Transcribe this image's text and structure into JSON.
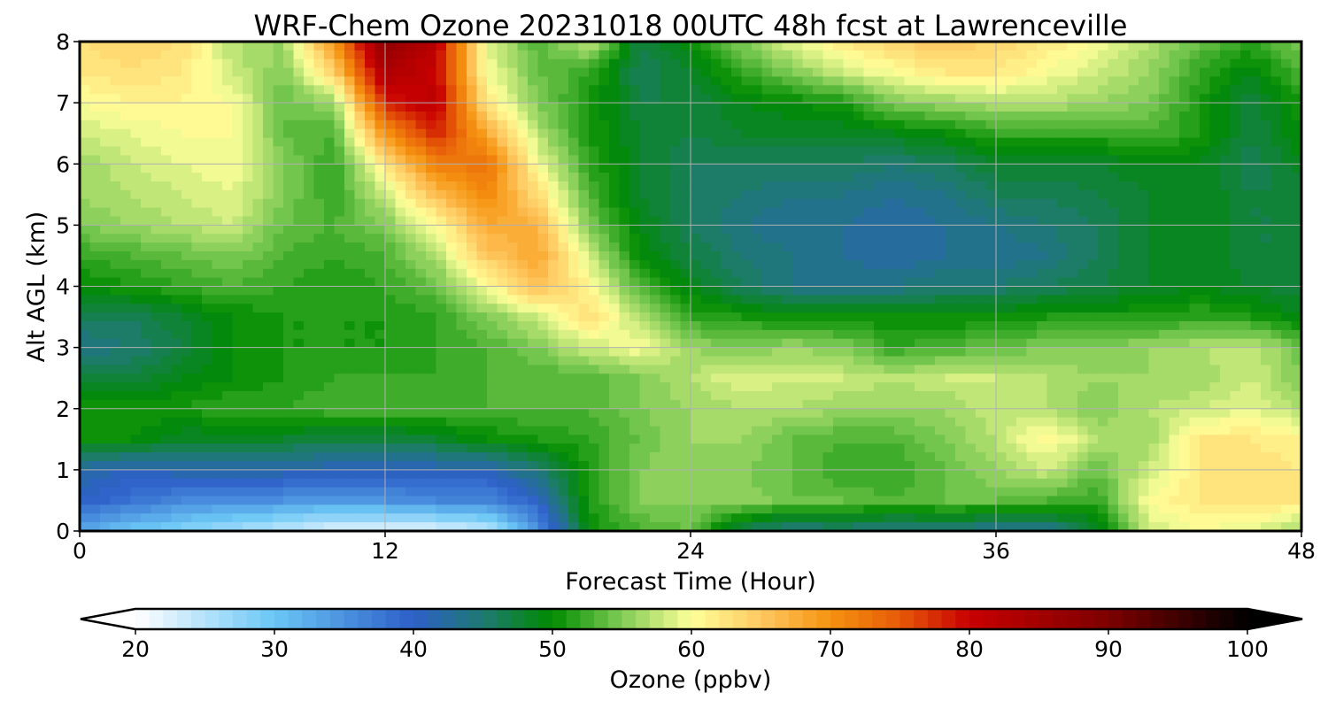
{
  "chart_data": {
    "type": "heatmap",
    "title": "WRF-Chem Ozone  20231018 00UTC 48h fcst at Lawrenceville",
    "xlabel": "Forecast Time (Hour)",
    "ylabel": "Alt AGL (km)",
    "x_ticks": [
      "0",
      "12",
      "24",
      "36",
      "48"
    ],
    "y_ticks": [
      "0",
      "1",
      "2",
      "3",
      "4",
      "5",
      "6",
      "7",
      "8"
    ],
    "xlim": [
      0,
      48
    ],
    "ylim": [
      0,
      8
    ],
    "grid": true,
    "x_hours": [
      0,
      2,
      4,
      6,
      8,
      10,
      12,
      14,
      16,
      18,
      20,
      22,
      24,
      26,
      28,
      30,
      32,
      34,
      36,
      38,
      40,
      42,
      44,
      46,
      48
    ],
    "y_km": [
      0,
      0.5,
      1,
      1.5,
      2,
      2.5,
      3,
      3.5,
      4,
      4.5,
      5,
      5.5,
      6,
      6.5,
      7,
      7.5,
      8
    ],
    "ozone_ppbv": [
      [
        33,
        30,
        28,
        26,
        24,
        22,
        21,
        22,
        24,
        35,
        50,
        53,
        54,
        46,
        44,
        45,
        44,
        44,
        43,
        43,
        48,
        58,
        60,
        59,
        56
      ],
      [
        40,
        38,
        36,
        35,
        35,
        34,
        35,
        36,
        36,
        40,
        51,
        55,
        55,
        56,
        54,
        54,
        53,
        54,
        54,
        53,
        52,
        60,
        62,
        63,
        62
      ],
      [
        42,
        41,
        42,
        42,
        42,
        41,
        41,
        41,
        41,
        45,
        51,
        55,
        56,
        55,
        54,
        52,
        52,
        54,
        56,
        58,
        54,
        58,
        62,
        63,
        62
      ],
      [
        50,
        50,
        48,
        48,
        48,
        47,
        47,
        48,
        50,
        51,
        52,
        54,
        56,
        56,
        54,
        53,
        53,
        55,
        57,
        61,
        57,
        56,
        62,
        62,
        61
      ],
      [
        51,
        51,
        51,
        52,
        52,
        53,
        53,
        53,
        53,
        53,
        53,
        55,
        56,
        57,
        57,
        56,
        56,
        56,
        58,
        57,
        55,
        57,
        58,
        59,
        57
      ],
      [
        47,
        47,
        49,
        50,
        51,
        52,
        52,
        52,
        53,
        53,
        53,
        55,
        57,
        59,
        58,
        58,
        57,
        58,
        58,
        57,
        56,
        56,
        56,
        58,
        55
      ],
      [
        44,
        45,
        47,
        50,
        51,
        51,
        51,
        52,
        53,
        55,
        58,
        60,
        56,
        55,
        56,
        55,
        52,
        53,
        54,
        55,
        55,
        56,
        57,
        58,
        54
      ],
      [
        46,
        46,
        48,
        50,
        51,
        51,
        51,
        52,
        55,
        58,
        63,
        57,
        52,
        51,
        50,
        50,
        50,
        50,
        50,
        51,
        51,
        51,
        52,
        51,
        49
      ],
      [
        50,
        51,
        52,
        53,
        52,
        51,
        52,
        54,
        60,
        66,
        61,
        53,
        49,
        46,
        44,
        44,
        44,
        45,
        45,
        46,
        47,
        48,
        49,
        48,
        47
      ],
      [
        52,
        53,
        54,
        55,
        53,
        52,
        53,
        57,
        65,
        68,
        58,
        50,
        47,
        45,
        44,
        43,
        42,
        43,
        43,
        44,
        46,
        48,
        49,
        47,
        47
      ],
      [
        55,
        56,
        57,
        58,
        54,
        53,
        55,
        60,
        68,
        67,
        55,
        49,
        46,
        44,
        43,
        43,
        42,
        43,
        44,
        45,
        46,
        48,
        49,
        47,
        47
      ],
      [
        56,
        57,
        58,
        59,
        55,
        52,
        58,
        66,
        71,
        63,
        53,
        48,
        46,
        45,
        44,
        44,
        43,
        44,
        46,
        46,
        47,
        48,
        49,
        47,
        47
      ],
      [
        56,
        58,
        59,
        60,
        55,
        52,
        62,
        72,
        73,
        60,
        52,
        48,
        46,
        46,
        46,
        46,
        45,
        46,
        48,
        48,
        48,
        49,
        49,
        46,
        49
      ],
      [
        58,
        59,
        60,
        60,
        54,
        53,
        70,
        78,
        68,
        57,
        51,
        48,
        47,
        48,
        48,
        48,
        49,
        50,
        52,
        52,
        52,
        53,
        51,
        47,
        50
      ],
      [
        60,
        61,
        61,
        60,
        54,
        56,
        78,
        82,
        62,
        55,
        51,
        47,
        47,
        49,
        50,
        51,
        55,
        56,
        57,
        57,
        56,
        55,
        51,
        47,
        51
      ],
      [
        62,
        63,
        62,
        58,
        55,
        64,
        84,
        80,
        60,
        54,
        52,
        46,
        48,
        52,
        55,
        58,
        60,
        62,
        62,
        60,
        58,
        56,
        52,
        49,
        53
      ],
      [
        63,
        64,
        63,
        57,
        56,
        70,
        88,
        82,
        59,
        53,
        58,
        47,
        50,
        55,
        59,
        62,
        64,
        65,
        64,
        62,
        60,
        57,
        54,
        52,
        55
      ]
    ],
    "colorbar": {
      "label": "Ozone  (ppbv)",
      "ticks": [
        "20",
        "30",
        "40",
        "50",
        "60",
        "70",
        "80",
        "90",
        "100"
      ],
      "min": 20,
      "max": 100,
      "step": 1,
      "extend": "both",
      "orientation": "horizontal",
      "placement": "bottom"
    },
    "colormap_stops": [
      {
        "value": 20,
        "color": "#ffffff"
      },
      {
        "value": 30,
        "color": "#6ac6f5"
      },
      {
        "value": 40,
        "color": "#2d5fc9"
      },
      {
        "value": 45,
        "color": "#1f7a72"
      },
      {
        "value": 50,
        "color": "#008b00"
      },
      {
        "value": 55,
        "color": "#80cc55"
      },
      {
        "value": 60,
        "color": "#ffff9a"
      },
      {
        "value": 65,
        "color": "#ffc860"
      },
      {
        "value": 70,
        "color": "#f59310"
      },
      {
        "value": 75,
        "color": "#e65a08"
      },
      {
        "value": 80,
        "color": "#c80000"
      },
      {
        "value": 90,
        "color": "#7d0000"
      },
      {
        "value": 100,
        "color": "#000000"
      }
    ]
  }
}
